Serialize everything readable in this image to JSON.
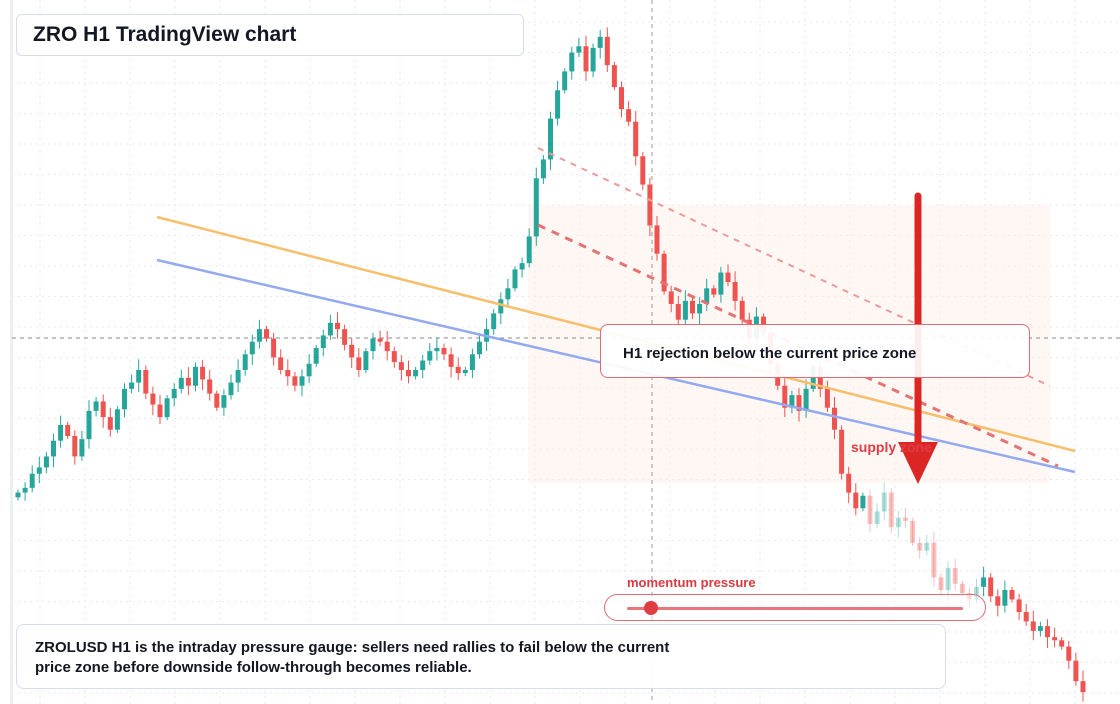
{
  "title": "ZRO H1 TradingView chart",
  "annotation_text": "H1 rejection below the current price zone",
  "supply_zone_label": "supply zone",
  "momentum_label": "momentum pressure",
  "momentum_level": 0.07,
  "caption": "ZROLUSD H1 is the intraday pressure gauge: sellers need rallies to fail below the current price zone before downside follow-through becomes reliable.",
  "colors": {
    "bull": "#26a69a",
    "bear": "#ef5350",
    "arrow": "#dc2626",
    "ma_orange": "#f7be6b",
    "ma_blue": "#93a9f0",
    "accent_red": "#e03c44"
  },
  "chart_data": {
    "type": "candlestick",
    "symbol": "ZROLUSD",
    "timeframe": "H1",
    "grid": true,
    "closes": [
      1.82,
      1.85,
      1.94,
      1.98,
      2.05,
      2.15,
      2.25,
      2.18,
      2.05,
      2.16,
      2.34,
      2.4,
      2.3,
      2.22,
      2.35,
      2.48,
      2.52,
      2.6,
      2.45,
      2.38,
      2.3,
      2.42,
      2.48,
      2.55,
      2.5,
      2.62,
      2.54,
      2.45,
      2.36,
      2.44,
      2.52,
      2.6,
      2.7,
      2.78,
      2.86,
      2.8,
      2.68,
      2.6,
      2.56,
      2.5,
      2.56,
      2.64,
      2.74,
      2.82,
      2.9,
      2.86,
      2.76,
      2.68,
      2.6,
      2.72,
      2.8,
      2.78,
      2.72,
      2.65,
      2.6,
      2.56,
      2.6,
      2.66,
      2.72,
      2.74,
      2.7,
      2.62,
      2.58,
      2.6,
      2.7,
      2.78,
      2.86,
      2.96,
      3.05,
      3.12,
      3.24,
      3.28,
      3.45,
      3.82,
      3.94,
      4.2,
      4.38,
      4.5,
      4.62,
      4.66,
      4.5,
      4.65,
      4.72,
      4.54,
      4.4,
      4.26,
      4.18,
      3.96,
      3.78,
      3.52,
      3.34,
      3.1,
      3.02,
      2.92,
      3.04,
      2.96,
      3.02,
      3.12,
      3.08,
      3.22,
      3.16,
      3.04,
      2.92,
      2.8,
      2.94,
      2.84,
      2.64,
      2.5,
      2.36,
      2.44,
      2.34,
      2.48,
      2.62,
      2.48,
      2.36,
      2.22,
      1.94,
      1.82,
      1.72,
      1.8,
      1.62,
      1.7,
      1.82,
      1.6,
      1.66,
      1.64,
      1.5,
      1.45,
      1.5,
      1.28,
      1.2,
      1.34,
      1.24,
      1.18,
      1.14,
      1.22,
      1.28,
      1.16,
      1.1,
      1.2,
      1.14,
      1.06,
      1.0,
      0.94,
      0.97,
      0.9,
      0.88,
      0.84,
      0.75,
      0.62,
      0.55
    ]
  }
}
